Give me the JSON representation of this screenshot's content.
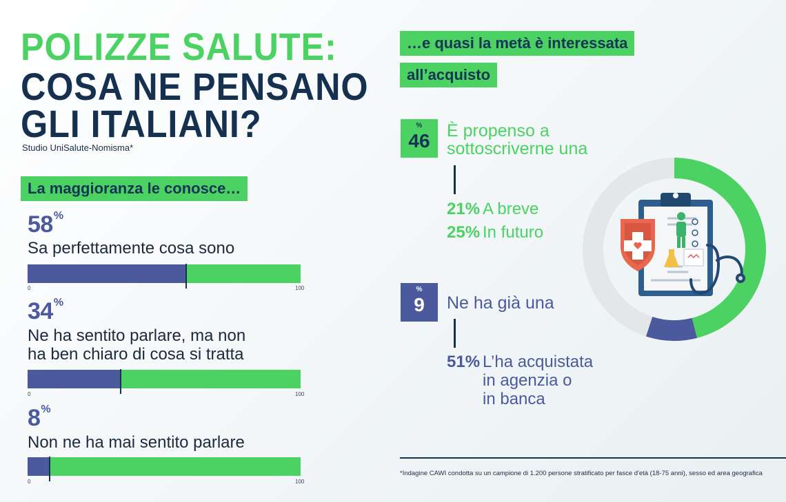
{
  "title": {
    "line1": "POLIZZE SALUTE:",
    "line2": "COSA NE PENSANO",
    "line3": "GLI ITALIANI?",
    "subtitle": "Studio UniSalute-Nomisma*"
  },
  "left_section": {
    "heading": "La maggioranza le conosce…",
    "percent_sign": "%",
    "tick_min": "0",
    "tick_max": "100",
    "items": [
      {
        "value": "58",
        "label_lines": [
          "Sa perfettamente cosa sono"
        ]
      },
      {
        "value": "34",
        "label_lines": [
          "Ne ha sentito parlare, ma non",
          "ha ben chiaro di cosa si tratta"
        ]
      },
      {
        "value": "8",
        "label_lines": [
          "Non ne ha mai sentito parlare"
        ]
      }
    ]
  },
  "right_section": {
    "heading_line1": "…e quasi la metà è interessata",
    "heading_line2": "all’acquisto",
    "percent_sign": "%",
    "propensi": {
      "value": "46",
      "text_line1": "È propenso a",
      "text_line2": "sottoscriverne una",
      "breakdown": [
        {
          "value": "21%",
          "label": "A breve"
        },
        {
          "value": "25%",
          "label": "In futuro"
        }
      ]
    },
    "possessori": {
      "value": "9",
      "text": "Ne ha già una",
      "breakdown_value": "51%",
      "breakdown_lines": [
        "L’ha acquistata",
        "in agenzia o",
        "in banca"
      ]
    }
  },
  "footnote": "*Indagine CAWI condotta su un campione di 1.200 persone stratificato per fasce d'età (18-75 anni), sesso ed area geografica",
  "chart_data": [
    {
      "type": "bar",
      "orientation": "horizontal",
      "categories": [
        "Sa perfettamente cosa sono",
        "Ne ha sentito parlare, ma non ha ben chiaro di cosa si tratta",
        "Non ne ha mai sentito parlare"
      ],
      "values": [
        58,
        34,
        8
      ],
      "xlim": [
        0,
        100
      ],
      "unit": "%"
    },
    {
      "type": "pie",
      "style": "donut",
      "slices": [
        {
          "label": "È propenso a sottoscriverne una",
          "value": 46,
          "color": "#4cd263"
        },
        {
          "label": "Ne ha già una",
          "value": 9,
          "color": "#4a5a9c"
        },
        {
          "label": "",
          "value": 45,
          "color": "#e4e7ea"
        }
      ]
    }
  ],
  "colors": {
    "green": "#4cd263",
    "navy": "#16304f",
    "blue": "#4a5a9c",
    "donut_rest": "#e4e7ea"
  }
}
